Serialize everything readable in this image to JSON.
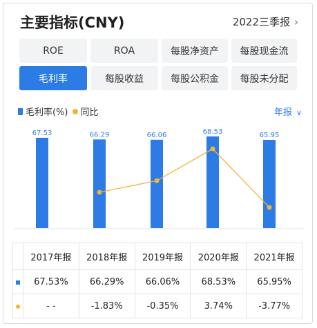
{
  "header": {
    "title": "主要指标(CNY)",
    "period": "2022三季报"
  },
  "tabs": [
    {
      "label": "ROE",
      "active": false
    },
    {
      "label": "ROA",
      "active": false
    },
    {
      "label": "每股净资产",
      "active": false
    },
    {
      "label": "每股现金流",
      "active": false
    },
    {
      "label": "毛利率",
      "active": true
    },
    {
      "label": "每股收益",
      "active": false
    },
    {
      "label": "每股公积金",
      "active": false
    },
    {
      "label": "每股未分配",
      "active": false
    }
  ],
  "legend": {
    "series1": "毛利率(%)",
    "series2": "同比"
  },
  "year_selector": "年报",
  "colors": {
    "bar": "#2d7be5",
    "line": "#f5b335",
    "positive": "#d33a3a",
    "negative": "#21a45a"
  },
  "chart_data": {
    "type": "bar",
    "categories": [
      "2017年报",
      "2018年报",
      "2019年报",
      "2020年报",
      "2021年报"
    ],
    "series": [
      {
        "name": "毛利率(%)",
        "type": "bar",
        "values": [
          67.53,
          66.29,
          66.06,
          68.53,
          65.95
        ]
      },
      {
        "name": "同比",
        "type": "line",
        "values": [
          null,
          -1.83,
          -0.35,
          3.74,
          -3.77
        ]
      }
    ],
    "data_labels": [
      "67.53",
      "66.29",
      "66.06",
      "68.53",
      "65.95"
    ],
    "grid": false,
    "legend": "top-left"
  },
  "table": {
    "headers": [
      "2017年报",
      "2018年报",
      "2019年报",
      "2020年报",
      "2021年报"
    ],
    "rows": [
      {
        "marker": "bar",
        "cells": [
          "67.53%",
          "66.29%",
          "66.06%",
          "68.53%",
          "65.95%"
        ]
      },
      {
        "marker": "line",
        "cells": [
          "- -",
          "-1.83%",
          "-0.35%",
          "3.74%",
          "-3.77%"
        ]
      }
    ]
  }
}
